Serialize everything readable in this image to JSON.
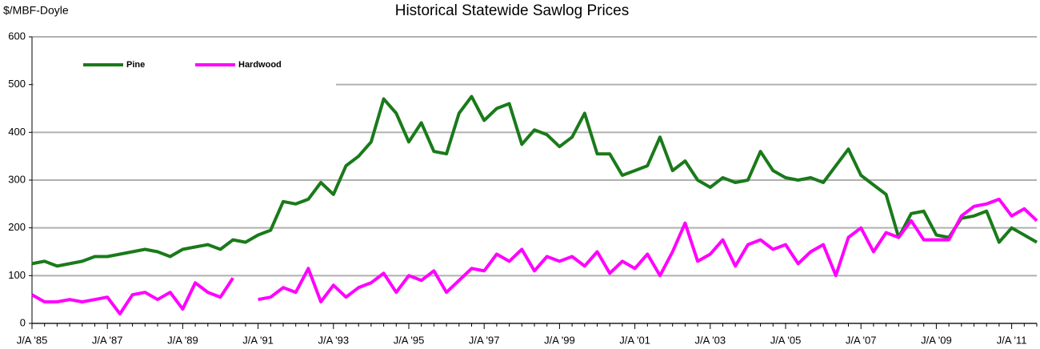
{
  "chart_data": {
    "type": "line",
    "title": "Historical Statewide Sawlog Prices",
    "y_label": "$/MBF-Doyle",
    "categories": [
      "J/A '85",
      null,
      null,
      null,
      null,
      null,
      "J/A '87",
      null,
      null,
      null,
      null,
      null,
      "J/A '89",
      null,
      null,
      null,
      null,
      null,
      "J/A '91",
      null,
      null,
      null,
      null,
      null,
      "J/A '93",
      null,
      null,
      null,
      null,
      null,
      "J/A '95",
      null,
      null,
      null,
      null,
      null,
      "J/A '97",
      null,
      null,
      null,
      null,
      null,
      "J/A '99",
      null,
      null,
      null,
      null,
      null,
      "J/A '01",
      null,
      null,
      null,
      null,
      null,
      "J/A '03",
      null,
      null,
      null,
      null,
      null,
      "J/A '05",
      null,
      null,
      null,
      null,
      null,
      "J/A '07",
      null,
      null,
      null,
      null,
      null,
      "J/A '09",
      null,
      null,
      null,
      null,
      null,
      "J/A '11",
      null,
      null
    ],
    "series": [
      {
        "name": "Pine",
        "color": "#1a7a1a",
        "values": [
          125,
          130,
          120,
          125,
          130,
          140,
          140,
          145,
          150,
          155,
          150,
          140,
          155,
          160,
          165,
          155,
          175,
          170,
          185,
          195,
          255,
          250,
          260,
          295,
          270,
          330,
          350,
          380,
          470,
          440,
          380,
          420,
          360,
          355,
          440,
          475,
          425,
          450,
          460,
          375,
          405,
          395,
          370,
          390,
          440,
          355,
          355,
          310,
          320,
          330,
          390,
          320,
          340,
          300,
          285,
          305,
          295,
          300,
          360,
          320,
          305,
          300,
          305,
          295,
          330,
          365,
          310,
          290,
          270,
          180,
          230,
          235,
          185,
          180,
          220,
          225,
          235,
          170,
          200,
          185,
          170
        ]
      },
      {
        "name": "Hardwood",
        "color": "#ff00ff",
        "values": [
          60,
          45,
          45,
          50,
          45,
          50,
          55,
          20,
          60,
          65,
          50,
          65,
          30,
          85,
          65,
          55,
          95,
          null,
          50,
          55,
          75,
          65,
          115,
          45,
          80,
          55,
          75,
          85,
          105,
          65,
          100,
          90,
          110,
          65,
          90,
          115,
          110,
          145,
          130,
          155,
          110,
          140,
          130,
          140,
          120,
          150,
          105,
          130,
          115,
          145,
          100,
          150,
          210,
          130,
          145,
          175,
          120,
          165,
          175,
          155,
          165,
          125,
          150,
          165,
          100,
          180,
          200,
          150,
          190,
          180,
          215,
          175,
          175,
          175,
          225,
          245,
          250,
          260,
          225,
          240,
          215
        ]
      }
    ],
    "ylim": [
      0,
      600
    ],
    "yticks": [
      0,
      100,
      200,
      300,
      400,
      500,
      600
    ],
    "grid": true,
    "legend": "top-left"
  }
}
